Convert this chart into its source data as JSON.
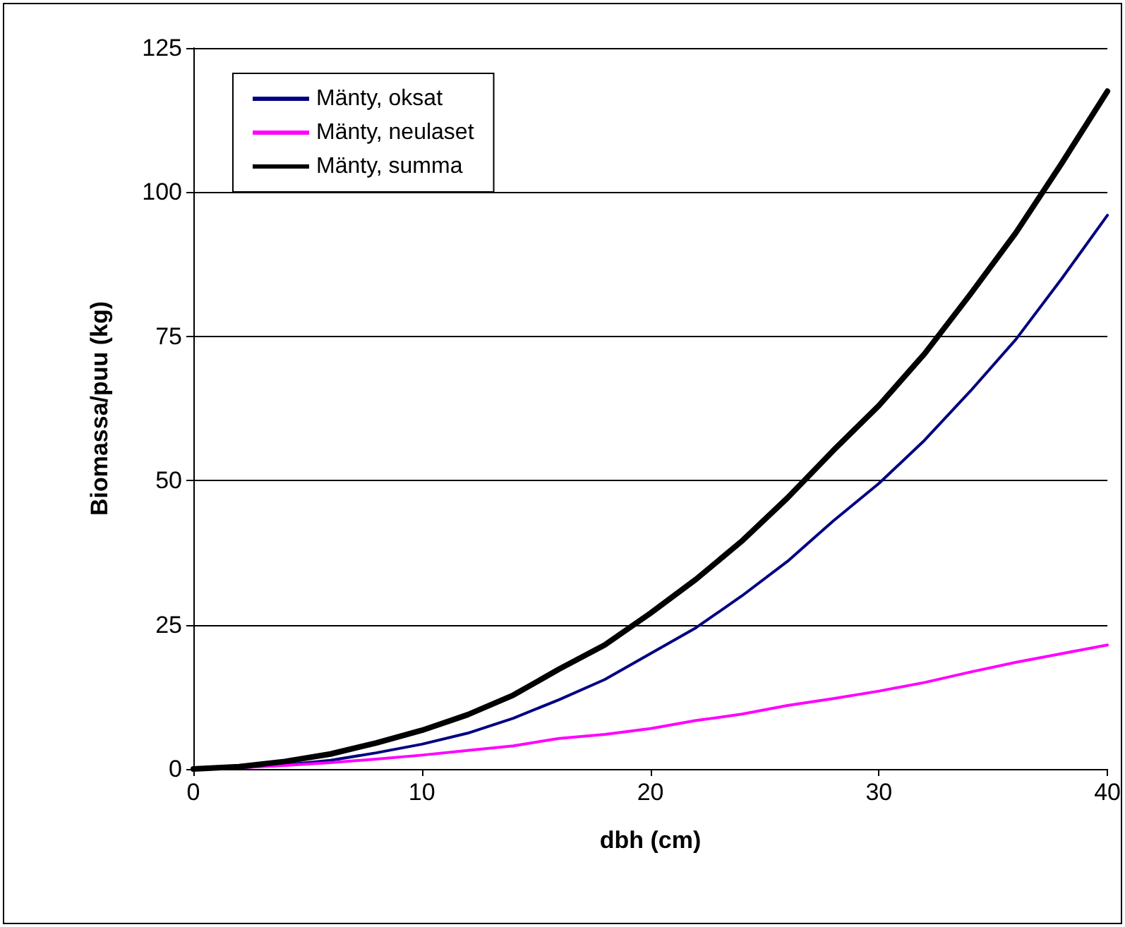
{
  "chart_data": {
    "type": "line",
    "xlabel": "dbh (cm)",
    "ylabel": "Biomassa/puu (kg)",
    "x": [
      0,
      2,
      4,
      6,
      8,
      10,
      12,
      14,
      16,
      18,
      20,
      22,
      24,
      26,
      28,
      30,
      32,
      34,
      36,
      38,
      40
    ],
    "series": [
      {
        "name": "Mänty, oksat",
        "color": "#000080",
        "values": [
          0,
          0.2,
          0.7,
          1.5,
          2.8,
          4.3,
          6.2,
          8.8,
          12,
          15.5,
          20,
          24.5,
          30,
          36,
          43,
          49.5,
          57,
          65.5,
          74.5,
          85,
          96
        ]
      },
      {
        "name": "Mänty, neulaset",
        "color": "#ff00ff",
        "values": [
          0,
          0.2,
          0.6,
          1.1,
          1.7,
          2.4,
          3.2,
          4.0,
          5.3,
          6.0,
          7.0,
          8.4,
          9.5,
          11.0,
          12.2,
          13.5,
          15,
          16.8,
          18.5,
          20,
          21.5
        ]
      },
      {
        "name": "Mänty, summa",
        "color": "#000000",
        "values": [
          0,
          0.4,
          1.3,
          2.6,
          4.5,
          6.7,
          9.4,
          12.8,
          17.3,
          21.5,
          27,
          32.9,
          39.5,
          47,
          55.2,
          63,
          72,
          82.3,
          93,
          105,
          117.5
        ]
      }
    ],
    "xlim": [
      0,
      40
    ],
    "xticks": [
      0,
      10,
      20,
      30,
      40
    ],
    "ylim": [
      0,
      125
    ],
    "yticks": [
      0,
      25,
      50,
      75,
      100,
      125
    ],
    "grid": "y",
    "legend": "top left",
    "marker": "none",
    "line_style": "solid"
  }
}
